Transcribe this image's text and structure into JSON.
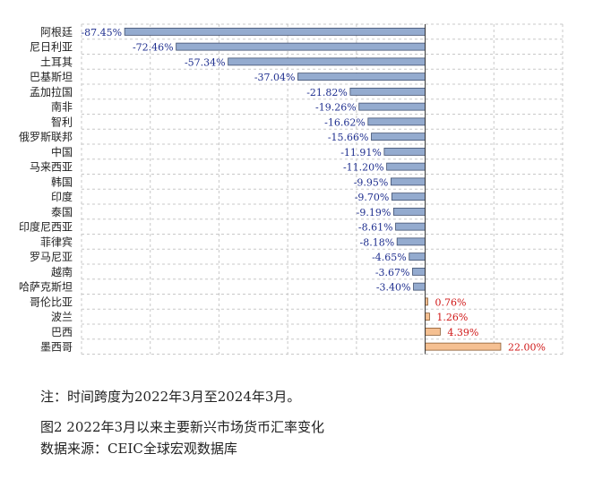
{
  "chart_data": {
    "type": "bar",
    "orientation": "horizontal",
    "categories": [
      "阿根廷",
      "尼日利亚",
      "土耳其",
      "巴基斯坦",
      "孟加拉国",
      "南非",
      "智利",
      "俄罗斯联邦",
      "中国",
      "马来西亚",
      "韩国",
      "印度",
      "泰国",
      "印度尼西亚",
      "菲律宾",
      "罗马尼亚",
      "越南",
      "哈萨克斯坦",
      "哥伦比亚",
      "波兰",
      "巴西",
      "墨西哥"
    ],
    "values": [
      -87.45,
      -72.46,
      -57.34,
      -37.04,
      -21.82,
      -19.26,
      -16.62,
      -15.66,
      -11.91,
      -11.2,
      -9.95,
      -9.7,
      -9.19,
      -8.61,
      -8.18,
      -4.65,
      -3.67,
      -3.4,
      0.76,
      1.26,
      4.39,
      22.0
    ],
    "data_labels": [
      "-87.45%",
      "-72.46%",
      "-57.34%",
      "-37.04%",
      "-21.82%",
      "-19.26%",
      "-16.62%",
      "-15.66%",
      "-11.91%",
      "-11.20%",
      "-9.95%",
      "-9.70%",
      "-9.19%",
      "-8.61%",
      "-8.18%",
      "-4.65%",
      "-3.67%",
      "-3.40%",
      "0.76%",
      "1.26%",
      "4.39%",
      "22.00%"
    ],
    "xlim": [
      -100,
      40
    ],
    "grid": true,
    "colors": {
      "negative_fill": "#94abcf",
      "negative_stroke": "#3f4f6f",
      "positive_fill": "#f5c092",
      "positive_stroke": "#8a5a30",
      "negative_label": "#1f2f8f",
      "positive_label": "#d01818",
      "grid": "#c8c8c8"
    }
  },
  "note": "注：时间跨度为2022年3月至2024年3月。",
  "caption": {
    "figure_title": "图2   2022年3月以来主要新兴市场货币汇率变化",
    "source": "数据来源：CEIC全球宏观数据库"
  }
}
